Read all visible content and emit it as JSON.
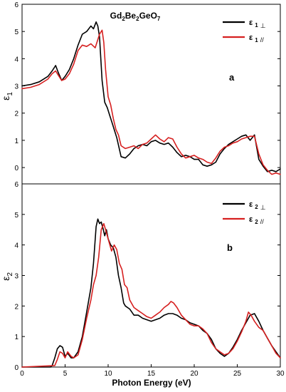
{
  "chart_data": [
    {
      "type": "line",
      "panel_label": "a",
      "title": "Gd2Be2GeO7",
      "title_parts": {
        "p1": "Gd",
        "s1": "2",
        "p2": "Be",
        "s2": "2",
        "p3": "GeO",
        "s3": "7"
      },
      "ylabel": {
        "base": "ε",
        "sub": "1"
      },
      "xlim": [
        0,
        30
      ],
      "ylim": [
        -0.6,
        6
      ],
      "yticks": [
        0,
        1,
        2,
        3,
        4,
        5,
        6
      ],
      "grid": false,
      "legend_position": "top-right",
      "series": [
        {
          "name": "ε 1 ⊥",
          "name_parts": {
            "base": "ε",
            "sub": "1",
            "suffix": "⊥"
          },
          "color": "#000000",
          "x": [
            0,
            1,
            2,
            3,
            3.5,
            3.9,
            4.2,
            4.6,
            5,
            5.5,
            6,
            6.5,
            7,
            7.5,
            8,
            8.3,
            8.6,
            8.8,
            9,
            9.3,
            9.6,
            9.9,
            10.2,
            10.5,
            10.8,
            11,
            11.5,
            12,
            12.5,
            13,
            13.5,
            14,
            14.5,
            15,
            15.5,
            16,
            16.5,
            17,
            17.5,
            18,
            18.5,
            19,
            19.5,
            20,
            20.5,
            21,
            21.5,
            22,
            22.5,
            23,
            23.5,
            24,
            24.5,
            25,
            25.5,
            26,
            26.5,
            27,
            27.5,
            28,
            28.5,
            29,
            29.5,
            30
          ],
          "y": [
            3.0,
            3.05,
            3.15,
            3.35,
            3.55,
            3.75,
            3.5,
            3.2,
            3.35,
            3.6,
            4.0,
            4.5,
            4.9,
            5.0,
            5.2,
            5.1,
            5.35,
            5.2,
            4.8,
            3.2,
            2.4,
            2.2,
            1.9,
            1.6,
            1.3,
            1.1,
            0.4,
            0.35,
            0.5,
            0.7,
            0.8,
            0.85,
            0.8,
            0.95,
            1.0,
            0.9,
            0.85,
            0.9,
            0.75,
            0.55,
            0.4,
            0.45,
            0.4,
            0.3,
            0.3,
            0.1,
            0.05,
            0.1,
            0.2,
            0.5,
            0.7,
            0.85,
            0.95,
            1.05,
            1.15,
            1.2,
            1.0,
            1.2,
            0.3,
            0.05,
            -0.15,
            -0.1,
            -0.15,
            -0.05
          ]
        },
        {
          "name": "ε 1 //",
          "name_parts": {
            "base": "ε",
            "sub": "1",
            "suffix": "//"
          },
          "color": "#d62020",
          "x": [
            0,
            1,
            2,
            3,
            3.5,
            3.9,
            4.2,
            4.6,
            5,
            5.5,
            6,
            6.5,
            7,
            7.5,
            8,
            8.5,
            9,
            9.3,
            9.5,
            9.7,
            10,
            10.3,
            10.6,
            10.9,
            11.2,
            11.5,
            12,
            12.5,
            13,
            13.5,
            14,
            14.5,
            15,
            15.5,
            16,
            16.5,
            17,
            17.5,
            18,
            18.5,
            19,
            19.5,
            20,
            20.5,
            21,
            21.5,
            22,
            22.5,
            23,
            23.5,
            24,
            24.5,
            25,
            25.5,
            26,
            26.5,
            27,
            27.5,
            28,
            28.5,
            29,
            29.5,
            30
          ],
          "y": [
            2.9,
            2.95,
            3.05,
            3.25,
            3.45,
            3.55,
            3.4,
            3.2,
            3.25,
            3.45,
            3.8,
            4.3,
            4.5,
            4.45,
            4.55,
            4.4,
            4.9,
            5.05,
            4.6,
            3.6,
            2.6,
            2.3,
            1.8,
            1.4,
            1.2,
            0.8,
            0.7,
            0.75,
            0.8,
            0.7,
            0.85,
            0.9,
            1.05,
            1.2,
            1.05,
            0.95,
            1.1,
            1.05,
            0.75,
            0.5,
            0.35,
            0.4,
            0.45,
            0.35,
            0.3,
            0.2,
            0.15,
            0.35,
            0.6,
            0.75,
            0.8,
            0.9,
            0.95,
            1.05,
            1.1,
            1.15,
            1.15,
            0.5,
            0.1,
            -0.1,
            -0.25,
            -0.2,
            -0.25
          ]
        }
      ]
    },
    {
      "type": "line",
      "panel_label": "b",
      "ylabel": {
        "base": "ε",
        "sub": "2"
      },
      "xlabel": "Photon Energy (eV)",
      "xlim": [
        0,
        30
      ],
      "ylim": [
        0,
        6
      ],
      "xticks": [
        0,
        5,
        10,
        15,
        20,
        25,
        30
      ],
      "yticks": [
        0,
        1,
        2,
        3,
        4,
        5,
        6
      ],
      "grid": false,
      "legend_position": "top-right",
      "series": [
        {
          "name": "ε 2 ⊥",
          "name_parts": {
            "base": "ε",
            "sub": "2",
            "suffix": "⊥"
          },
          "color": "#000000",
          "x": [
            0,
            3.3,
            3.5,
            3.8,
            4.1,
            4.4,
            4.7,
            5,
            5.3,
            5.7,
            6,
            6.5,
            7,
            7.5,
            8,
            8.3,
            8.6,
            8.8,
            9,
            9.2,
            9.4,
            9.6,
            9.8,
            10,
            10.3,
            10.6,
            10.9,
            11.2,
            11.5,
            11.8,
            12,
            12.5,
            13,
            13.5,
            14,
            14.5,
            15,
            15.5,
            16,
            16.5,
            17,
            17.5,
            18,
            18.5,
            19,
            19.5,
            20,
            20.5,
            21,
            21.5,
            22,
            22.5,
            23,
            23.5,
            24,
            24.5,
            25,
            25.5,
            26,
            26.5,
            27,
            27.5,
            28,
            28.5,
            29,
            29.5,
            30
          ],
          "y": [
            0.0,
            0.0,
            0.05,
            0.3,
            0.6,
            0.7,
            0.65,
            0.35,
            0.45,
            0.3,
            0.3,
            0.5,
            1.0,
            1.8,
            2.6,
            3.4,
            4.6,
            4.85,
            4.7,
            4.75,
            4.55,
            4.3,
            4.5,
            4.2,
            4.0,
            3.9,
            3.6,
            3.0,
            2.6,
            2.1,
            2.0,
            1.9,
            1.7,
            1.7,
            1.6,
            1.55,
            1.5,
            1.55,
            1.6,
            1.7,
            1.75,
            1.75,
            1.7,
            1.6,
            1.55,
            1.45,
            1.4,
            1.35,
            1.2,
            1.1,
            0.9,
            0.6,
            0.45,
            0.35,
            0.45,
            0.65,
            0.9,
            1.2,
            1.45,
            1.7,
            1.75,
            1.5,
            1.2,
            0.95,
            0.7,
            0.5,
            0.3
          ]
        },
        {
          "name": "ε 2 //",
          "name_parts": {
            "base": "ε",
            "sub": "2",
            "suffix": "//"
          },
          "color": "#d62020",
          "x": [
            0,
            3.8,
            4.1,
            4.4,
            4.7,
            5,
            5.3,
            5.7,
            6,
            6.5,
            7,
            7.5,
            8,
            8.3,
            8.6,
            8.9,
            9.2,
            9.5,
            9.8,
            10.1,
            10.4,
            10.7,
            11,
            11.3,
            11.6,
            11.9,
            12.2,
            12.5,
            13,
            13.5,
            14,
            14.5,
            15,
            15.5,
            16,
            16.5,
            17,
            17.3,
            17.6,
            18,
            18.5,
            19,
            19.5,
            20,
            20.5,
            21,
            21.5,
            22,
            22.5,
            23,
            23.5,
            24,
            24.5,
            25,
            25.5,
            26,
            26.3,
            26.6,
            27,
            27.5,
            28,
            28.5,
            29,
            29.5,
            30
          ],
          "y": [
            0.0,
            0.05,
            0.25,
            0.5,
            0.45,
            0.3,
            0.5,
            0.35,
            0.3,
            0.4,
            0.9,
            1.6,
            2.2,
            2.7,
            3.0,
            3.6,
            4.5,
            4.7,
            4.4,
            4.1,
            3.8,
            4.0,
            3.85,
            3.4,
            3.2,
            2.7,
            2.6,
            2.2,
            1.95,
            1.85,
            1.75,
            1.65,
            1.6,
            1.7,
            1.8,
            1.95,
            2.05,
            2.15,
            2.1,
            1.95,
            1.7,
            1.55,
            1.4,
            1.35,
            1.35,
            1.25,
            1.1,
            0.8,
            0.6,
            0.5,
            0.4,
            0.45,
            0.6,
            0.85,
            1.15,
            1.5,
            1.8,
            1.7,
            1.5,
            1.3,
            1.2,
            0.95,
            0.7,
            0.45,
            0.3
          ]
        }
      ]
    }
  ]
}
